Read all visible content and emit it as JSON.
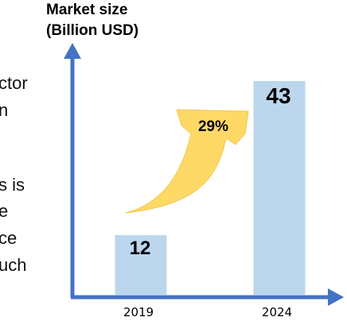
{
  "side_text": {
    "lines": [
      "ctor",
      "n",
      "",
      "",
      "s is",
      "e",
      "ce",
      "uch"
    ]
  },
  "chart_data": {
    "type": "bar",
    "title": "",
    "ylabel": "Market size\n(Billion USD)",
    "ylabel_lines": [
      "Market size",
      "(Billion USD)"
    ],
    "xlabel": "",
    "categories": [
      "2019",
      "2024"
    ],
    "values": [
      12,
      43
    ],
    "data_labels": [
      "12",
      "43"
    ],
    "ylim": [
      0,
      50
    ],
    "annotation": {
      "text": "29%",
      "type": "curved-arrow",
      "from": "2019",
      "to": "2024"
    },
    "colors": {
      "bar": "#bcd6ee",
      "axis": "#4472c4",
      "arrow": "#ffd966"
    },
    "grid": false,
    "legend": "none"
  }
}
